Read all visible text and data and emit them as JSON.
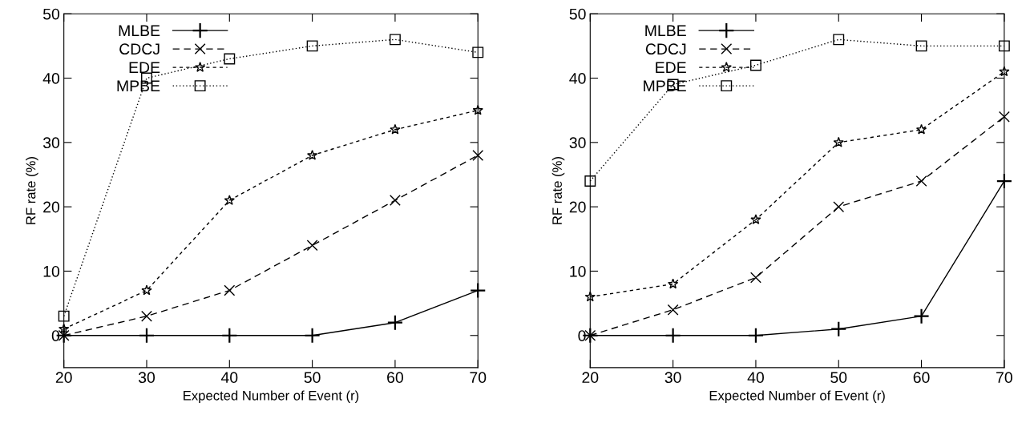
{
  "chart_data": [
    {
      "type": "line",
      "xlabel": "Expected Number of Event (r)",
      "ylabel": "RF rate (%)",
      "x": [
        20,
        30,
        40,
        50,
        60,
        70
      ],
      "xlim": [
        20,
        70
      ],
      "xticks": [
        20,
        30,
        40,
        50,
        60,
        70
      ],
      "ylim": [
        -5,
        50
      ],
      "yticks": [
        0,
        10,
        20,
        30,
        40,
        50
      ],
      "legend": "top left",
      "grid": false,
      "series": [
        {
          "name": "MLBE",
          "color": "#000000",
          "marker": "cross",
          "line_style": "solid",
          "values": [
            0,
            0,
            0,
            0,
            2,
            7
          ]
        },
        {
          "name": "CDCJ",
          "color": "#000000",
          "marker": "x",
          "line_style": "dashed",
          "values": [
            0,
            3,
            7,
            14,
            21,
            28
          ]
        },
        {
          "name": "EDE",
          "color": "#000000",
          "marker": "star",
          "line_style": "dashed",
          "values": [
            1,
            7,
            21,
            28,
            32,
            35
          ]
        },
        {
          "name": "MPBE",
          "color": "#000000",
          "marker": "square",
          "line_style": "dotted",
          "values": [
            3,
            40,
            43,
            45,
            46,
            44
          ]
        }
      ]
    },
    {
      "type": "line",
      "xlabel": "Expected Number of Event (r)",
      "ylabel": "RF rate (%)",
      "x": [
        20,
        30,
        40,
        50,
        60,
        70
      ],
      "xlim": [
        20,
        70
      ],
      "xticks": [
        20,
        30,
        40,
        50,
        60,
        70
      ],
      "ylim": [
        -5,
        50
      ],
      "yticks": [
        0,
        10,
        20,
        30,
        40,
        50
      ],
      "legend": "top left",
      "grid": false,
      "series": [
        {
          "name": "MLBE",
          "color": "#000000",
          "marker": "cross",
          "line_style": "solid",
          "values": [
            0,
            0,
            0,
            1,
            3,
            24
          ]
        },
        {
          "name": "CDCJ",
          "color": "#000000",
          "marker": "x",
          "line_style": "dashed",
          "values": [
            0,
            4,
            9,
            20,
            24,
            34
          ]
        },
        {
          "name": "EDE",
          "color": "#000000",
          "marker": "star",
          "line_style": "dashed",
          "values": [
            6,
            8,
            18,
            30,
            32,
            41
          ]
        },
        {
          "name": "MPBE",
          "color": "#000000",
          "marker": "square",
          "line_style": "dotted",
          "values": [
            24,
            39,
            42,
            46,
            45,
            45
          ]
        }
      ]
    }
  ]
}
